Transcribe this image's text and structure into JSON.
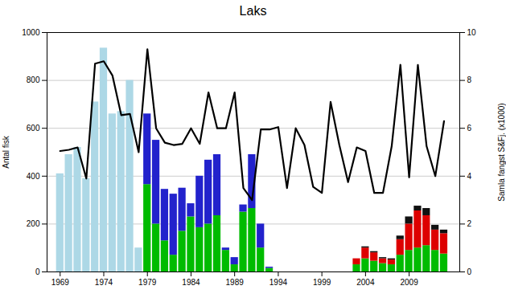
{
  "chart_data": {
    "type": "bar",
    "title": "Laks",
    "ylabel": "Antal fisk",
    "y2label": "Samla fangst S&Fj. (x1000)",
    "xlim": [
      1967.5,
      2014.8
    ],
    "xticks": [
      1969,
      1974,
      1979,
      1984,
      1989,
      1994,
      1999,
      2004,
      2009
    ],
    "ylim": [
      0,
      1000
    ],
    "yticks": [
      0,
      200,
      400,
      600,
      800,
      1000
    ],
    "y2lim": [
      0,
      10
    ],
    "y2ticks": [
      0,
      2,
      4,
      6,
      8,
      10
    ],
    "grid": true,
    "stacked": true,
    "series": [
      {
        "type": "bar",
        "axis": "y",
        "color": "#ADD8E6",
        "x": [
          1969,
          1970,
          1971,
          1972,
          1973,
          1974,
          1975,
          1976,
          1977,
          1978
        ],
        "values": [
          410,
          490,
          520,
          390,
          710,
          935,
          660,
          670,
          800,
          100
        ]
      },
      {
        "type": "bar",
        "axis": "y",
        "color": "#00BB00",
        "x": [
          1979,
          1980,
          1981,
          1982,
          1983,
          1984,
          1985,
          1986,
          1987,
          1988,
          1989,
          1990,
          1991,
          1992,
          1993
        ],
        "values": [
          365,
          200,
          130,
          70,
          170,
          230,
          185,
          200,
          235,
          90,
          30,
          250,
          265,
          100,
          15
        ]
      },
      {
        "type": "bar",
        "axis": "y",
        "color": "#2222CC",
        "x": [
          1979,
          1980,
          1981,
          1982,
          1983,
          1984,
          1985,
          1986,
          1987,
          1988,
          1989,
          1990,
          1991,
          1992,
          1993
        ],
        "values": [
          295,
          350,
          215,
          255,
          180,
          55,
          215,
          267,
          255,
          10,
          30,
          30,
          225,
          100,
          5
        ]
      },
      {
        "type": "bar",
        "axis": "y2",
        "color": "#00BB00",
        "x": [
          2003,
          2004,
          2005,
          2006,
          2007,
          2008,
          2009,
          2010,
          2011,
          2012,
          2013
        ],
        "values": [
          0.3,
          0.55,
          0.45,
          0.35,
          0.3,
          0.7,
          0.9,
          1.0,
          1.1,
          0.9,
          0.75
        ]
      },
      {
        "type": "bar",
        "axis": "y2",
        "color": "#DD0000",
        "x": [
          2003,
          2004,
          2005,
          2006,
          2007,
          2008,
          2009,
          2010,
          2011,
          2012,
          2013
        ],
        "values": [
          0.25,
          0.45,
          0.35,
          0.2,
          0.2,
          0.65,
          1.1,
          1.55,
          1.25,
          0.85,
          0.85
        ]
      },
      {
        "type": "bar",
        "axis": "y2",
        "color": "#111111",
        "x": [
          2003,
          2004,
          2005,
          2006,
          2007,
          2008,
          2009,
          2010,
          2011,
          2012,
          2013
        ],
        "values": [
          0.0,
          0.05,
          0.05,
          0.05,
          0.05,
          0.15,
          0.3,
          0.2,
          0.3,
          0.2,
          0.15
        ]
      },
      {
        "type": "line",
        "axis": "y2",
        "color": "#000000",
        "x": [
          1969,
          1970,
          1971,
          1972,
          1973,
          1974,
          1975,
          1976,
          1977,
          1978,
          1979,
          1980,
          1981,
          1982,
          1983,
          1984,
          1985,
          1986,
          1987,
          1988,
          1989,
          1990,
          1991,
          1992,
          1993,
          1994,
          1995,
          1996,
          1997,
          1998,
          1999,
          2000,
          2001,
          2002,
          2003,
          2004,
          2005,
          2006,
          2007,
          2008,
          2009,
          2010,
          2011,
          2012,
          2013
        ],
        "values": [
          5.05,
          5.1,
          5.2,
          3.9,
          8.7,
          8.8,
          8.2,
          6.55,
          6.6,
          5.0,
          9.3,
          6.0,
          5.4,
          5.3,
          5.35,
          6.0,
          5.35,
          7.5,
          6.0,
          6.0,
          7.5,
          3.5,
          3.0,
          5.95,
          5.95,
          6.05,
          3.5,
          6.0,
          5.3,
          3.55,
          3.3,
          7.1,
          5.3,
          3.75,
          5.2,
          5.05,
          3.3,
          3.3,
          5.25,
          8.65,
          3.95,
          8.65,
          5.25,
          4.0,
          6.3
        ]
      }
    ]
  }
}
